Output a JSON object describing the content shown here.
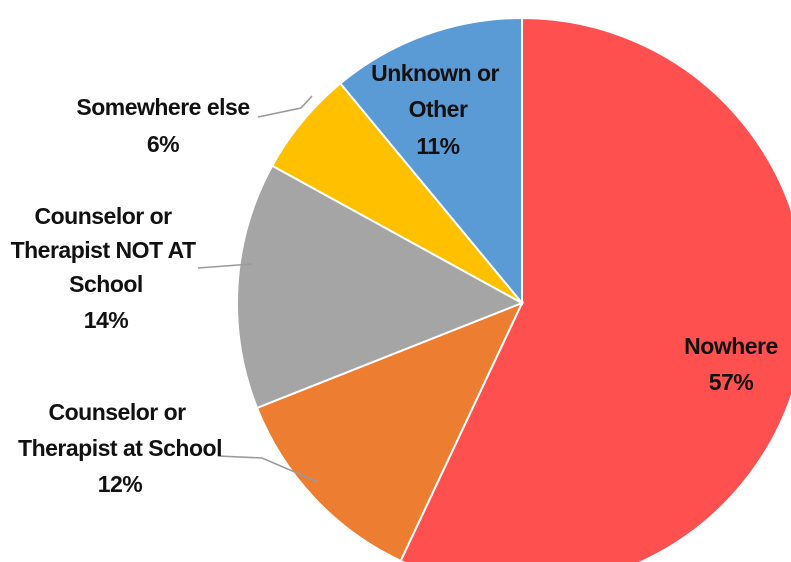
{
  "chart_data": {
    "type": "pie",
    "title": "",
    "start_angle_deg": 0,
    "direction": "clockwise",
    "slices": [
      {
        "label": "Nowhere",
        "value": 57,
        "value_label": "57%",
        "color": "#FF5050"
      },
      {
        "label": "Counselor or Therapist at School",
        "value": 12,
        "value_label": "12%",
        "color": "#ED7D31"
      },
      {
        "label": "Counselor or Therapist NOT AT School",
        "value": 14,
        "value_label": "14%",
        "color": "#A5A5A5"
      },
      {
        "label": "Somewhere else",
        "value": 6,
        "value_label": "6%",
        "color": "#FFC000"
      },
      {
        "label": "Unknown or Other",
        "value": 11,
        "value_label": "11%",
        "color": "#5B9BD5"
      }
    ],
    "legend": "none"
  }
}
